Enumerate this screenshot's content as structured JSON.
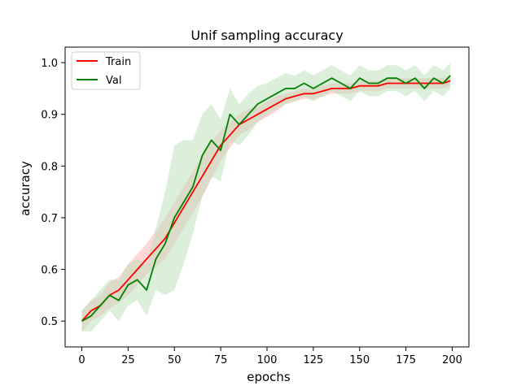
{
  "chart_data": {
    "type": "line",
    "title": "Unif sampling accuracy",
    "xlabel": "epochs",
    "ylabel": "accuracy",
    "xlim": [
      -9,
      209
    ],
    "ylim": [
      0.45,
      1.03
    ],
    "xticks": [
      0,
      25,
      50,
      75,
      100,
      125,
      150,
      175,
      200
    ],
    "yticks": [
      0.5,
      0.6,
      0.7,
      0.8,
      0.9,
      1.0
    ],
    "ytick_labels": [
      "0.5",
      "0.6",
      "0.7",
      "0.8",
      "0.9",
      "1.0"
    ],
    "grid": false,
    "legend_position": "top-left",
    "series": [
      {
        "name": "Train",
        "color": "#ff0000",
        "band_color": "#ffb0b0",
        "x": [
          0,
          5,
          10,
          15,
          20,
          25,
          30,
          35,
          40,
          45,
          50,
          55,
          60,
          65,
          70,
          75,
          80,
          85,
          90,
          95,
          100,
          105,
          110,
          115,
          120,
          125,
          130,
          135,
          140,
          145,
          150,
          155,
          160,
          165,
          170,
          175,
          180,
          185,
          190,
          195,
          199
        ],
        "values": [
          0.5,
          0.52,
          0.53,
          0.55,
          0.56,
          0.58,
          0.6,
          0.62,
          0.64,
          0.66,
          0.69,
          0.72,
          0.75,
          0.78,
          0.81,
          0.84,
          0.86,
          0.88,
          0.89,
          0.9,
          0.91,
          0.92,
          0.93,
          0.935,
          0.94,
          0.94,
          0.945,
          0.95,
          0.95,
          0.95,
          0.955,
          0.955,
          0.955,
          0.96,
          0.96,
          0.96,
          0.96,
          0.96,
          0.96,
          0.96,
          0.965
        ],
        "band": [
          0.02,
          0.02,
          0.02,
          0.025,
          0.025,
          0.03,
          0.03,
          0.03,
          0.035,
          0.04,
          0.04,
          0.04,
          0.04,
          0.04,
          0.035,
          0.03,
          0.025,
          0.02,
          0.02,
          0.015,
          0.015,
          0.015,
          0.01,
          0.01,
          0.01,
          0.01,
          0.01,
          0.01,
          0.01,
          0.01,
          0.01,
          0.01,
          0.01,
          0.01,
          0.01,
          0.01,
          0.01,
          0.01,
          0.01,
          0.01,
          0.01
        ]
      },
      {
        "name": "Val",
        "color": "#008000",
        "band_color": "#b8e0b8",
        "x": [
          0,
          5,
          10,
          15,
          20,
          25,
          30,
          35,
          40,
          45,
          50,
          55,
          60,
          65,
          70,
          75,
          80,
          85,
          90,
          95,
          100,
          105,
          110,
          115,
          120,
          125,
          130,
          135,
          140,
          145,
          150,
          155,
          160,
          165,
          170,
          175,
          180,
          185,
          190,
          195,
          199
        ],
        "values": [
          0.5,
          0.51,
          0.53,
          0.55,
          0.54,
          0.57,
          0.58,
          0.56,
          0.62,
          0.65,
          0.7,
          0.73,
          0.76,
          0.82,
          0.85,
          0.83,
          0.9,
          0.88,
          0.9,
          0.92,
          0.93,
          0.94,
          0.95,
          0.95,
          0.96,
          0.95,
          0.96,
          0.97,
          0.96,
          0.95,
          0.97,
          0.96,
          0.96,
          0.97,
          0.97,
          0.96,
          0.97,
          0.95,
          0.97,
          0.96,
          0.975
        ],
        "band": [
          0.02,
          0.03,
          0.03,
          0.03,
          0.04,
          0.04,
          0.04,
          0.05,
          0.06,
          0.1,
          0.14,
          0.12,
          0.09,
          0.08,
          0.07,
          0.06,
          0.05,
          0.04,
          0.04,
          0.035,
          0.03,
          0.03,
          0.03,
          0.025,
          0.025,
          0.025,
          0.025,
          0.025,
          0.025,
          0.025,
          0.025,
          0.025,
          0.025,
          0.025,
          0.025,
          0.025,
          0.025,
          0.025,
          0.025,
          0.025,
          0.025
        ]
      }
    ]
  }
}
